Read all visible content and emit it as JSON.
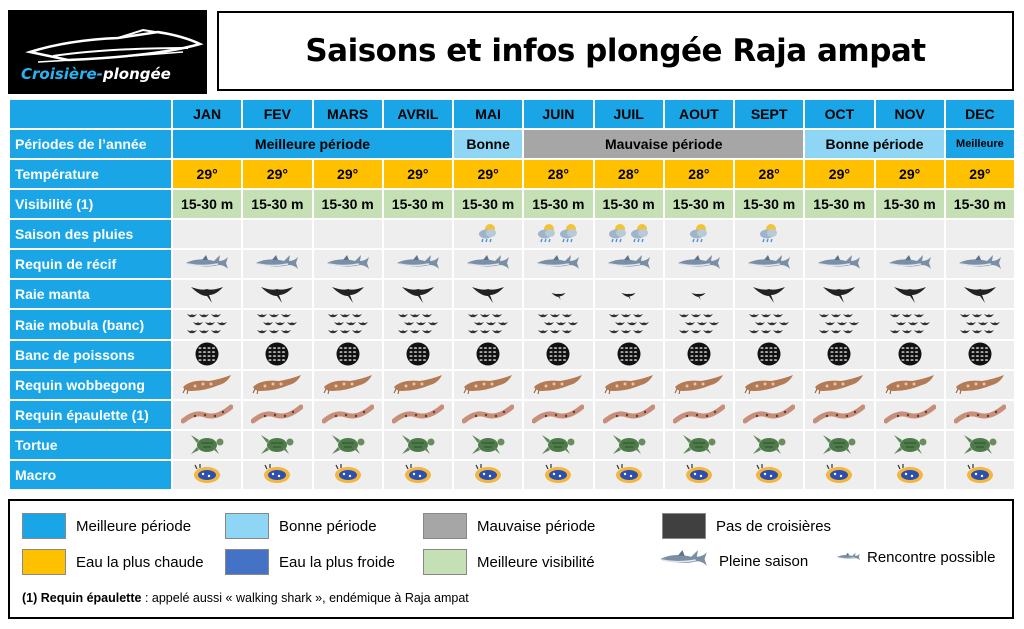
{
  "logo": {
    "part1": "Croisière-",
    "part2": "plongée"
  },
  "title": "Saisons et infos plongée Raja ampat",
  "months": [
    "JAN",
    "FEV",
    "MARS",
    "AVRIL",
    "MAI",
    "JUIN",
    "JUIL",
    "AOUT",
    "SEPT",
    "OCT",
    "NOV",
    "DEC"
  ],
  "rows": {
    "periods": {
      "label": "Périodes de l’année",
      "segments": [
        {
          "text": "Meilleure période",
          "span": 4,
          "kind": "best"
        },
        {
          "text": "Bonne",
          "span": 1,
          "kind": "good"
        },
        {
          "text": "Mauvaise période",
          "span": 4,
          "kind": "bad"
        },
        {
          "text": "Bonne période",
          "span": 2,
          "kind": "good"
        },
        {
          "text": "Meilleure",
          "span": 1,
          "kind": "best"
        }
      ]
    },
    "temperature": {
      "label": "Température",
      "values": [
        "29°",
        "29°",
        "29°",
        "29°",
        "29°",
        "28°",
        "28°",
        "28°",
        "28°",
        "29°",
        "29°",
        "29°"
      ],
      "kinds": [
        "warm",
        "warm",
        "warm",
        "warm",
        "warm",
        "warm",
        "warm",
        "warm",
        "warm",
        "warm",
        "warm",
        "warm"
      ]
    },
    "visibility": {
      "label": "Visibilité (1)",
      "values": [
        "15-30 m",
        "15-30 m",
        "15-30 m",
        "15-30 m",
        "15-30 m",
        "15-30 m",
        "15-30 m",
        "15-30 m",
        "15-30 m",
        "15-30 m",
        "15-30 m",
        "15-30 m"
      ]
    },
    "rain": {
      "label": "Saison des pluies",
      "icon": "rain-cloud-icon",
      "counts": [
        0,
        0,
        0,
        0,
        1,
        2,
        2,
        1,
        1,
        0,
        0,
        0
      ]
    },
    "reef_shark": {
      "label": "Requin de récif",
      "icon": "shark-icon",
      "size": [
        "big",
        "big",
        "big",
        "big",
        "big",
        "big",
        "big",
        "big",
        "big",
        "big",
        "big",
        "big"
      ]
    },
    "manta": {
      "label": "Raie manta",
      "icon": "manta-ray-icon",
      "size": [
        "big",
        "big",
        "big",
        "big",
        "big",
        "small",
        "small",
        "small",
        "big",
        "big",
        "big",
        "big"
      ]
    },
    "mobula": {
      "label": "Raie mobula (banc)",
      "icon": "mobula-school-icon",
      "size": [
        "big",
        "big",
        "big",
        "big",
        "big",
        "big",
        "big",
        "big",
        "big",
        "big",
        "big",
        "big"
      ]
    },
    "fish_school": {
      "label": "Banc de poissons",
      "icon": "fish-school-icon"
    },
    "wobbegong": {
      "label": "Requin wobbegong",
      "icon": "wobbegong-icon"
    },
    "epaulette": {
      "label": "Requin épaulette (1)",
      "icon": "epaulette-shark-icon"
    },
    "turtle": {
      "label": "Tortue",
      "icon": "turtle-icon"
    },
    "macro": {
      "label": "Macro",
      "icon": "nudibranch-icon"
    }
  },
  "legend": {
    "best": "Meilleure période",
    "good": "Bonne période",
    "bad": "Mauvaise période",
    "no_cruise": "Pas de croisières",
    "warmest": "Eau la plus chaude",
    "coldest": "Eau la plus froide",
    "best_vis": "Meilleure visibilité",
    "high_season": "Pleine saison",
    "possible": "Rencontre possible"
  },
  "legend_colors": {
    "best": "#1aa6e6",
    "good": "#8fd6f5",
    "bad": "#a6a6a6",
    "no_cruise": "#404040",
    "warmest": "#ffc000",
    "coldest": "#4472c4",
    "best_vis": "#c5e0b4"
  },
  "note": {
    "bold": "(1) Requin épaulette",
    "text": " : appelé aussi « walking shark », endémique à Raja ampat"
  }
}
